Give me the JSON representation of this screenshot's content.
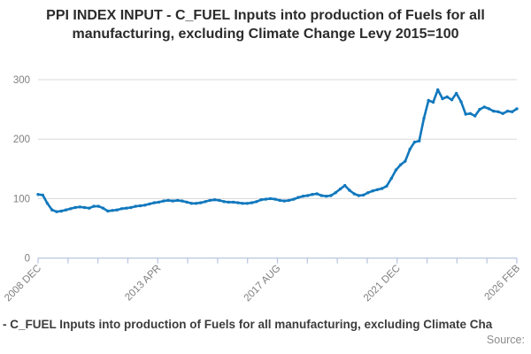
{
  "title": "PPI INDEX INPUT - C_FUEL Inputs into production of Fuels for all manufacturing, excluding Climate Change Levy 2015=100",
  "footer": {
    "legend_label": "- C_FUEL Inputs into production of Fuels for all manufacturing, excluding Climate Cha",
    "source_label": "Source:"
  },
  "colors": {
    "line": "#1178bd",
    "grid": "#d8d8d8",
    "axis": "#b9c7e0",
    "tick_label": "#7f7f7f",
    "title_text": "#2b2b2b",
    "legend_text": "#3c3c3c",
    "source_text": "#8c8c8c"
  },
  "chart_data": {
    "type": "line",
    "title": "PPI INDEX INPUT - C_FUEL Inputs into production of Fuels for all manufacturing, excluding Climate Change Levy 2015=100",
    "index_base": "2015=100",
    "ylabel": "",
    "xlabel": "",
    "ylim": [
      0,
      300
    ],
    "y_ticks": [
      0,
      100,
      200,
      300
    ],
    "x_tick_labels": [
      "2008 DEC",
      "2013 APR",
      "2017 AUG",
      "2021 DEC",
      "2026 FEB"
    ],
    "minor_ticks_between_labels": 3,
    "grid": "horizontal",
    "legend_position": "bottom",
    "series": [
      {
        "name": "C_FUEL Inputs into production of Fuels for all manufacturing, excluding Climate Change Levy",
        "start": "2008 DEC",
        "end": "2026 FEB",
        "interval_months": 2,
        "values": [
          107,
          106,
          92,
          81,
          78,
          79,
          81,
          83,
          85,
          86,
          85,
          84,
          87,
          87,
          84,
          79,
          80,
          81,
          83,
          84,
          85,
          87,
          88,
          89,
          91,
          93,
          94,
          96,
          97,
          96,
          97,
          96,
          94,
          92,
          92,
          93,
          95,
          97,
          98,
          97,
          95,
          94,
          94,
          93,
          92,
          92,
          93,
          95,
          98,
          99,
          100,
          99,
          97,
          96,
          97,
          99,
          102,
          104,
          105,
          107,
          108,
          105,
          104,
          105,
          110,
          116,
          122,
          114,
          108,
          105,
          106,
          110,
          113,
          115,
          117,
          121,
          134,
          148,
          157,
          163,
          183,
          195,
          197,
          235,
          265,
          262,
          283,
          268,
          271,
          266,
          277,
          263,
          242,
          243,
          239,
          250,
          254,
          251,
          247,
          246,
          243,
          247,
          246,
          251
        ]
      }
    ]
  }
}
